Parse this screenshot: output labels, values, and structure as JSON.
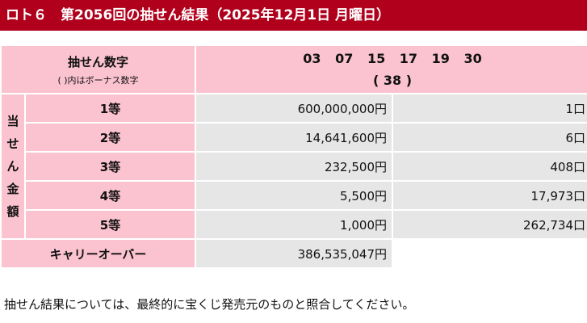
{
  "header": {
    "title": "ロト６　第2056回の抽せん結果（2025年12月1日 月曜日）"
  },
  "winning": {
    "label": "抽せん数字",
    "sublabel": "( )内はボーナス数字",
    "numbers": [
      "03",
      "07",
      "15",
      "17",
      "19",
      "30"
    ],
    "bonus": "( 38 )"
  },
  "prizes": {
    "side_label": [
      "当",
      "せ",
      "ん",
      "金",
      "額"
    ],
    "rows": [
      {
        "grade": "1等",
        "amount": "600,000,000円",
        "count": "1口"
      },
      {
        "grade": "2等",
        "amount": "14,641,600円",
        "count": "6口"
      },
      {
        "grade": "3等",
        "amount": "232,500円",
        "count": "408口"
      },
      {
        "grade": "4等",
        "amount": "5,500円",
        "count": "17,973口"
      },
      {
        "grade": "5等",
        "amount": "1,000円",
        "count": "262,734口"
      }
    ]
  },
  "carryover": {
    "label": "キャリーオーバー",
    "amount": "386,535,047円"
  },
  "footer": {
    "note": "抽せん結果については、最終的に宝くじ発売元のものと照合してください。"
  },
  "colors": {
    "title_bg": "#b0001c",
    "label_bg": "#fbc2d0",
    "value_bg": "#e6e6e6"
  }
}
